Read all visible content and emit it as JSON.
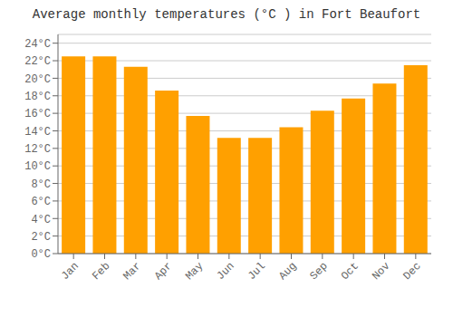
{
  "chart_data": {
    "type": "bar",
    "title": "Average monthly temperatures (°C ) in Fort Beaufort",
    "categories": [
      "Jan",
      "Feb",
      "Mar",
      "Apr",
      "May",
      "Jun",
      "Jul",
      "Aug",
      "Sep",
      "Oct",
      "Nov",
      "Dec"
    ],
    "values": [
      22.5,
      22.5,
      21.3,
      18.6,
      15.7,
      13.2,
      13.2,
      14.4,
      16.3,
      17.7,
      19.4,
      21.5
    ],
    "color": "#FFA000",
    "ylim": [
      0,
      25
    ],
    "yticks": [
      {
        "value": 0,
        "label": "0°C"
      },
      {
        "value": 2,
        "label": "2°C"
      },
      {
        "value": 4,
        "label": "4°C"
      },
      {
        "value": 6,
        "label": "6°C"
      },
      {
        "value": 8,
        "label": "8°C"
      },
      {
        "value": 10,
        "label": "10°C"
      },
      {
        "value": 12,
        "label": "12°C"
      },
      {
        "value": 14,
        "label": "14°C"
      },
      {
        "value": 16,
        "label": "16°C"
      },
      {
        "value": 18,
        "label": "18°C"
      },
      {
        "value": 20,
        "label": "20°C"
      },
      {
        "value": 22,
        "label": "22°C"
      },
      {
        "value": 24,
        "label": "24°C"
      }
    ],
    "grid": true
  }
}
